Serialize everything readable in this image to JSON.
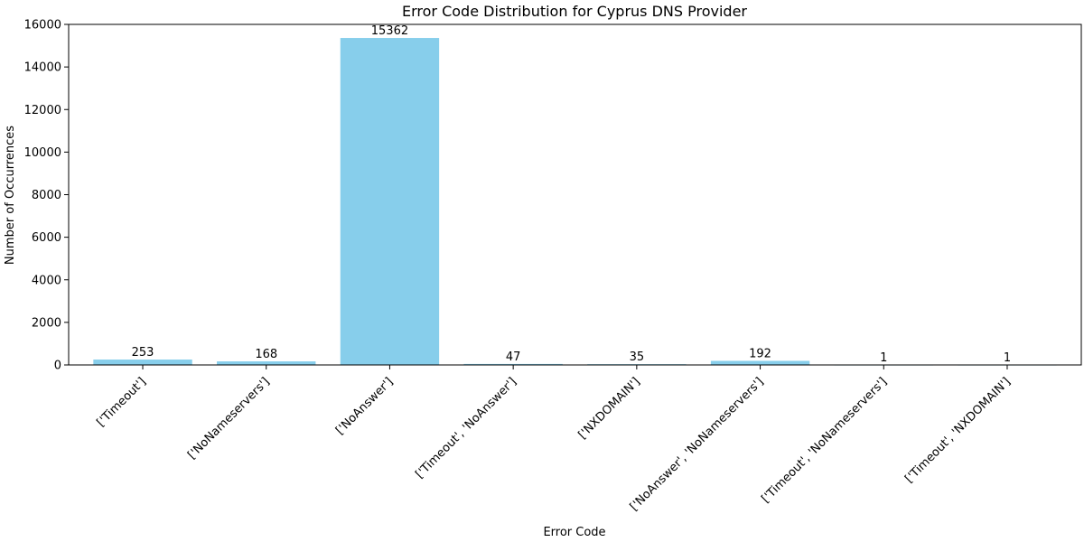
{
  "chart_data": {
    "type": "bar",
    "title": "Error Code Distribution for Cyprus DNS Provider",
    "xlabel": "Error Code",
    "ylabel": "Number of Occurrences",
    "categories": [
      "['Timeout']",
      "['NoNameservers']",
      "['NoAnswer']",
      "['Timeout', 'NoAnswer']",
      "['NXDOMAIN']",
      "['NoAnswer', 'NoNameservers']",
      "['Timeout', 'NoNameservers']",
      "['Timeout', 'NXDOMAIN']"
    ],
    "values": [
      253,
      168,
      15362,
      47,
      35,
      192,
      1,
      1
    ],
    "value_labels": [
      "253",
      "168",
      "15362",
      "47",
      "35",
      "192",
      "1",
      "1"
    ],
    "ylim": [
      0,
      16000
    ],
    "yticks": [
      0,
      2000,
      4000,
      6000,
      8000,
      10000,
      12000,
      14000,
      16000
    ],
    "ytick_labels": [
      "0",
      "2000",
      "4000",
      "6000",
      "8000",
      "10000",
      "12000",
      "14000",
      "16000"
    ],
    "bar_color": "#87ceeb",
    "grid": false,
    "legend": "none"
  }
}
